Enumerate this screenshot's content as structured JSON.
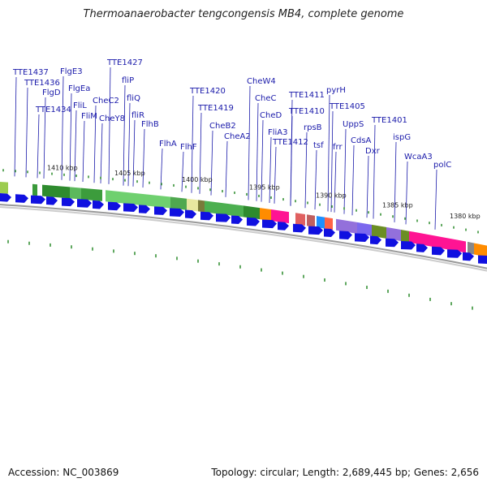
{
  "title": "Thermoanaerobacter tengcongensis MB4, complete genome",
  "footer": {
    "accession": "Accession: NC_003869",
    "summary": "Topology: circular; Length: 2,689,445 bp; Genes: 2,656"
  },
  "colors": {
    "label": "#1a1aaa",
    "gene_arrow": "#1010e0",
    "backbone": "#999999",
    "tick": "#2a8a2a"
  },
  "kbp_labels": [
    "1410 kbp",
    "1405 kbp",
    "1400 kbp",
    "1395 kbp",
    "1390 kbp",
    "1385 kbp",
    "1380 kbp"
  ],
  "gene_labels": [
    "TTE1437",
    "TTE1436",
    "FlgD",
    "TTE1434",
    "FlgE3",
    "FlgEa",
    "FliL",
    "FliM",
    "CheC2",
    "CheY8",
    "TTE1427",
    "fliP",
    "fliQ",
    "fliR",
    "FlhB",
    "FlhA",
    "FlhF",
    "TTE1420",
    "TTE1419",
    "CheB2",
    "CheA2",
    "CheW4",
    "CheC",
    "CheD",
    "FliA3",
    "TTE1412",
    "TTE1411",
    "TTE1410",
    "rpsB",
    "tsf",
    "pyrH",
    "TTE1405",
    "UppS",
    "frr",
    "CdsA",
    "Dxr",
    "TTE1401",
    "ispG",
    "WcaA3",
    "polC"
  ]
}
